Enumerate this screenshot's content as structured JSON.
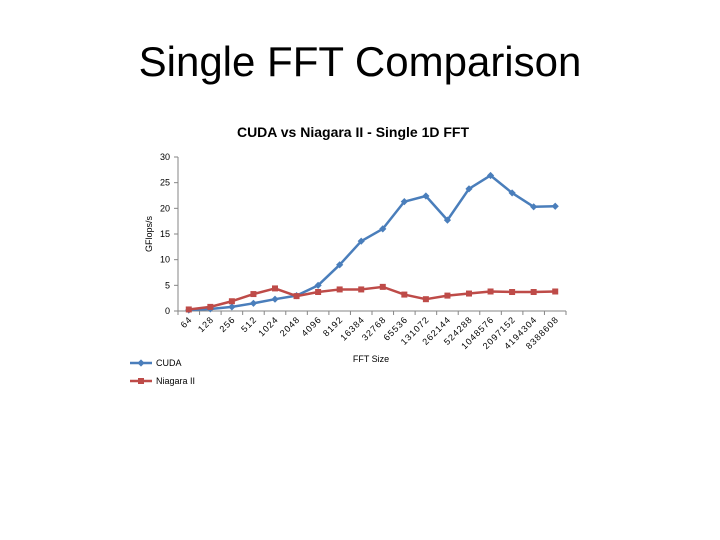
{
  "slide": {
    "title": "Single FFT Comparison"
  },
  "chart_data": {
    "type": "line",
    "title": "CUDA vs Niagara II - Single 1D FFT",
    "xlabel": "FFT Size",
    "ylabel": "GFlops/s",
    "ylim": [
      0,
      30
    ],
    "y_ticks": [
      0,
      5,
      10,
      15,
      20,
      25,
      30
    ],
    "grid": false,
    "legend_position": "bottom-left",
    "categories": [
      "64",
      "128",
      "256",
      "512",
      "1024",
      "2048",
      "4096",
      "8192",
      "16384",
      "32768",
      "65536",
      "131072",
      "262144",
      "524288",
      "1048576",
      "2097152",
      "4194304",
      "8388608"
    ],
    "series": [
      {
        "name": "CUDA",
        "color": "#4a7ebb",
        "marker": "diamond",
        "values": [
          0.2,
          0.4,
          0.8,
          1.5,
          2.3,
          3.0,
          5.0,
          9.0,
          13.6,
          16.0,
          21.3,
          22.4,
          17.7,
          23.8,
          26.4,
          23.0,
          20.3,
          20.4
        ]
      },
      {
        "name": "Niagara II",
        "color": "#be4b48",
        "marker": "square",
        "values": [
          0.3,
          0.8,
          1.9,
          3.3,
          4.4,
          2.9,
          3.7,
          4.2,
          4.2,
          4.7,
          3.2,
          2.3,
          3.0,
          3.4,
          3.8,
          3.7,
          3.7,
          3.8
        ]
      }
    ]
  }
}
